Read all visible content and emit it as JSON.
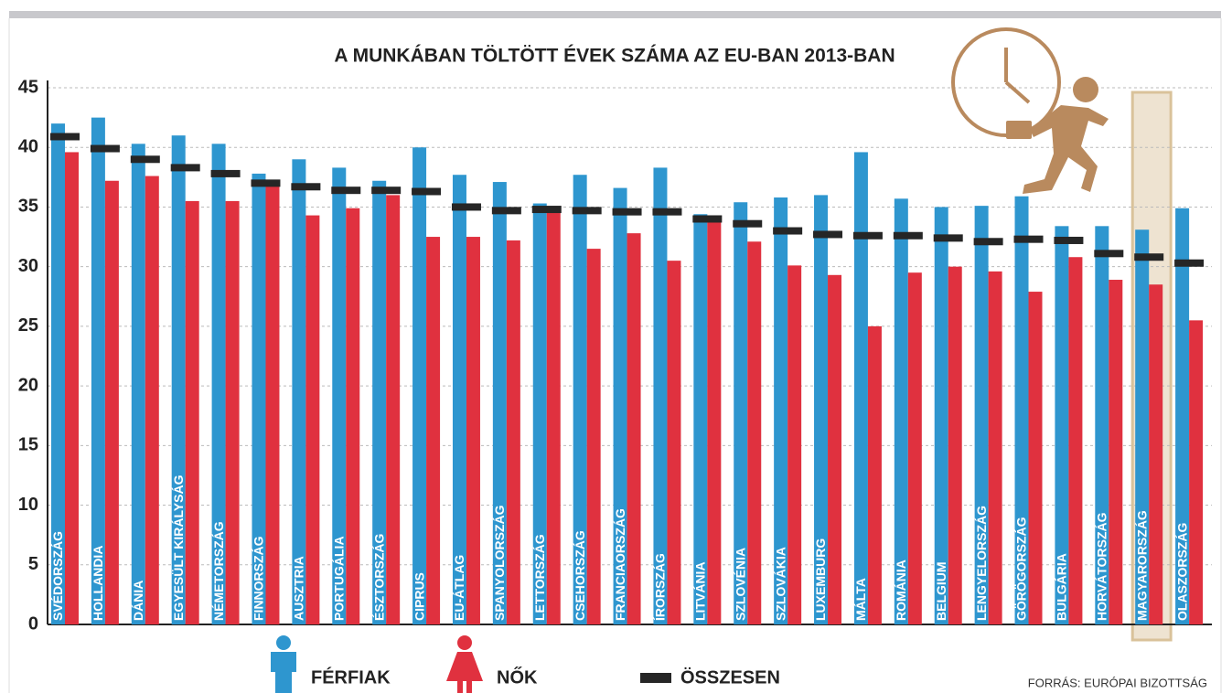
{
  "chart_data": {
    "type": "bar",
    "title": "A MUNKÁBAN TÖLTÖTT ÉVEK SZÁMA AZ EU-BAN 2013-BAN",
    "categories": [
      "SVÉDORSZÁG",
      "HOLLANDIA",
      "DÁNIA",
      "EGYESÜLT KIRÁLYSÁG",
      "NÉMETORSZÁG",
      "FINNORSZÁG",
      "AUSZTRIA",
      "PORTUGÁLIA",
      "ÉSZTORSZÁG",
      "CIPRUS",
      "EU-ÁTLAG",
      "SPANYOLORSZÁG",
      "LETTORSZÁG",
      "CSEHORSZÁG",
      "FRANCIAORSZÁG",
      "ÍRORSZÁG",
      "LITVÁNIA",
      "SZLOVÉNIA",
      "SZLOVÁKIA",
      "LUXEMBURG",
      "MÁLTA",
      "ROMÁNIA",
      "BELGIUM",
      "LENGYELORSZÁG",
      "GÖRÖGORSZÁG",
      "BULGÁRIA",
      "HORVÁTORSZÁG",
      "MAGYARORSZÁG",
      "OLASZORSZÁG"
    ],
    "series": [
      {
        "name": "FÉRFIAK",
        "color": "#2e96cf",
        "values": [
          42.0,
          42.5,
          40.3,
          41.0,
          40.3,
          37.8,
          39.0,
          38.3,
          37.2,
          40.0,
          37.7,
          37.1,
          35.3,
          37.7,
          36.6,
          38.3,
          34.4,
          35.4,
          35.8,
          36.0,
          39.6,
          35.7,
          35.0,
          35.1,
          35.9,
          33.4,
          33.4,
          33.1,
          34.9
        ]
      },
      {
        "name": "NŐK",
        "color": "#e0313f",
        "values": [
          39.6,
          37.2,
          37.6,
          35.5,
          35.5,
          36.9,
          34.3,
          34.9,
          36.0,
          32.5,
          32.5,
          32.2,
          34.8,
          31.5,
          32.8,
          30.5,
          34.0,
          32.1,
          30.1,
          29.3,
          25.0,
          29.5,
          30.0,
          29.6,
          27.9,
          30.8,
          28.9,
          28.5,
          25.5
        ]
      },
      {
        "name": "ÖSSZESEN",
        "color": "#262626",
        "marker": "dash",
        "values": [
          40.9,
          39.9,
          39.0,
          38.3,
          37.8,
          37.0,
          36.7,
          36.4,
          36.4,
          36.3,
          35.0,
          34.7,
          34.8,
          34.7,
          34.6,
          34.6,
          34.0,
          33.6,
          33.0,
          32.7,
          32.6,
          32.6,
          32.4,
          32.1,
          32.3,
          32.2,
          31.1,
          30.8,
          30.3
        ]
      }
    ],
    "highlight": 27,
    "ylim": [
      0,
      45
    ],
    "yticks": [
      0,
      5,
      10,
      15,
      20,
      25,
      30,
      35,
      40,
      45
    ],
    "grid": true,
    "source": "FORRÁS: EURÓPAI BIZOTTSÁG"
  }
}
